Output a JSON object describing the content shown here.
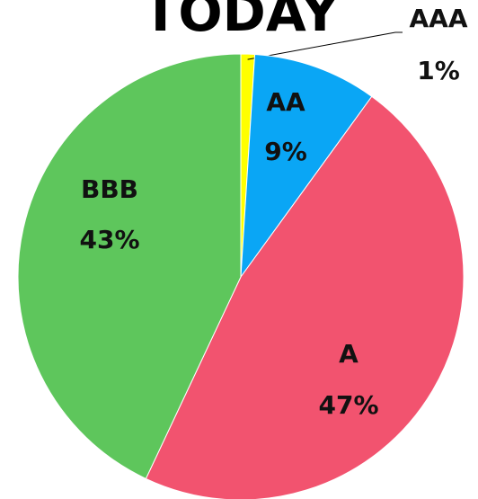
{
  "chart_data": {
    "type": "pie",
    "title": "TODAY",
    "categories": [
      "AAA",
      "AA",
      "A",
      "BBB"
    ],
    "values": [
      1,
      9,
      47,
      43
    ],
    "value_labels": [
      "1%",
      "9%",
      "47%",
      "43%"
    ],
    "colors": [
      "#ffff00",
      "#0aa6f5",
      "#f2536f",
      "#5ec65c"
    ]
  }
}
